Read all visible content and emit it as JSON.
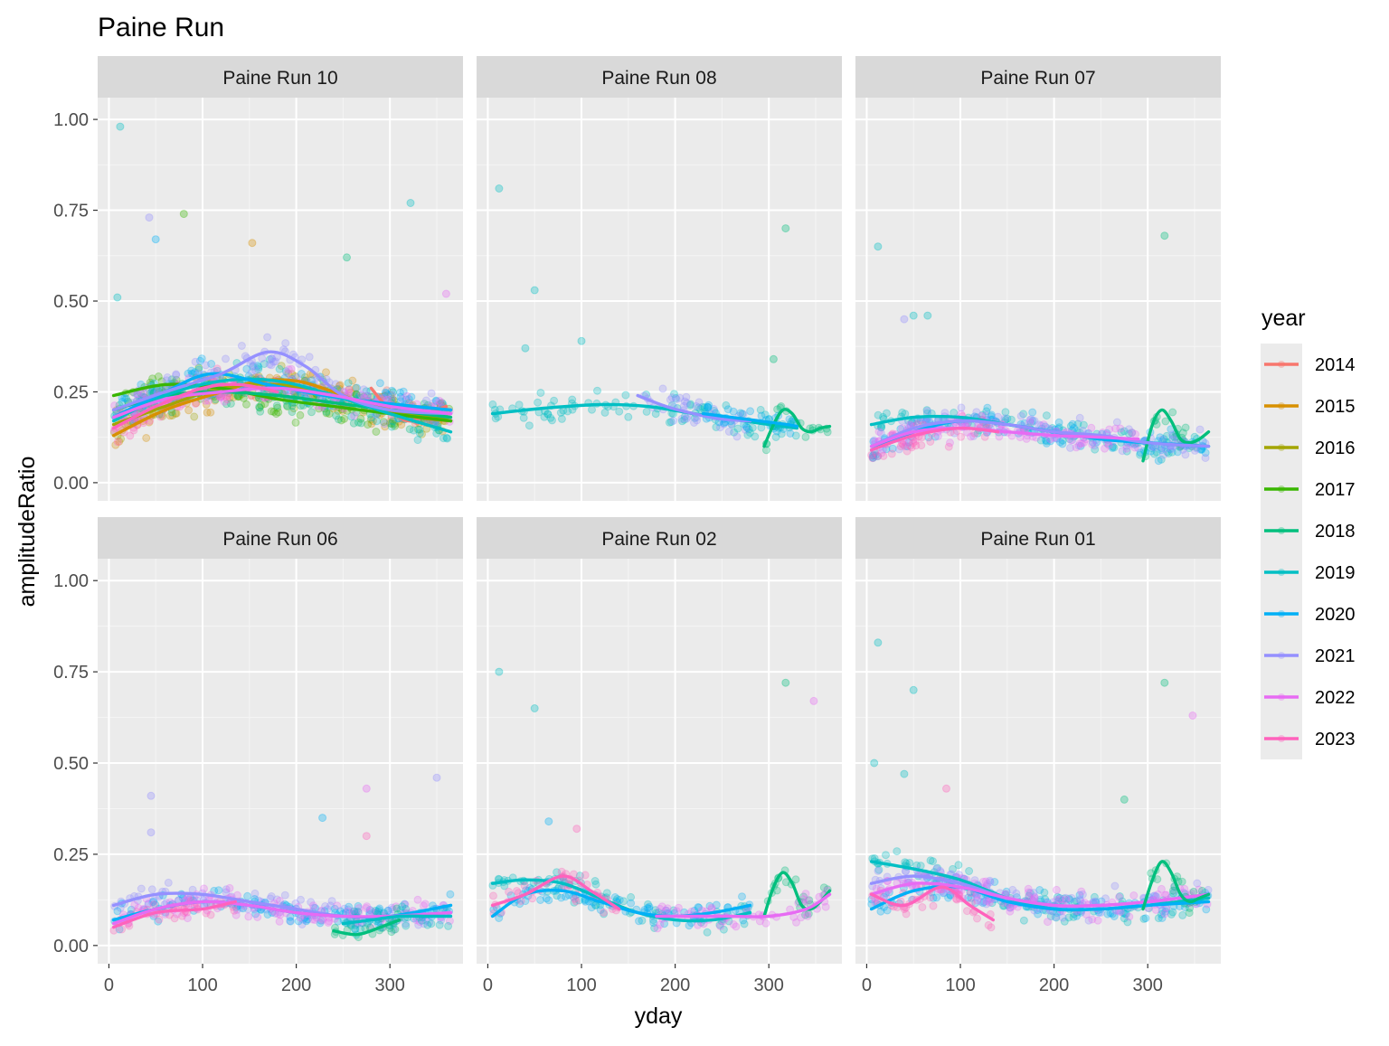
{
  "chart_data": {
    "type": "scatter",
    "title": "Paine Run",
    "xlabel": "yday",
    "ylabel": "amplitudeRatio",
    "xlim": [
      -12,
      378
    ],
    "ylim": [
      -0.05,
      1.06
    ],
    "x_ticks": [
      0,
      100,
      200,
      300
    ],
    "x_tick_labels": [
      "0",
      "100",
      "200",
      "300"
    ],
    "y_ticks": [
      0,
      0.25,
      0.5,
      0.75,
      1.0
    ],
    "y_tick_labels": [
      "0.00",
      "0.25",
      "0.50",
      "0.75",
      "1.00"
    ],
    "grid": true,
    "legend": {
      "title": "year",
      "position": "right",
      "entries": [
        "2014",
        "2015",
        "2016",
        "2017",
        "2018",
        "2019",
        "2020",
        "2021",
        "2022",
        "2023"
      ],
      "colors": [
        "#F8766D",
        "#D89000",
        "#A3A500",
        "#39B600",
        "#00BF7D",
        "#00BFC4",
        "#00B0F6",
        "#9590FF",
        "#E76BF3",
        "#FF62BC"
      ]
    },
    "panels": [
      {
        "label": "Paine Run 10",
        "smooth": [
          {
            "year": "2014",
            "x": [
              280,
              300,
              320,
              340,
              360
            ],
            "y": [
              0.26,
              0.2,
              0.17,
              0.19,
              0.21
            ]
          },
          {
            "year": "2015",
            "x": [
              5,
              60,
              120,
              160,
              200,
              240,
              280,
              330,
              365
            ],
            "y": [
              0.13,
              0.2,
              0.25,
              0.28,
              0.28,
              0.25,
              0.21,
              0.18,
              0.17
            ]
          },
          {
            "year": "2016",
            "x": [
              5,
              60,
              120,
              180,
              240,
              300,
              365
            ],
            "y": [
              0.16,
              0.21,
              0.26,
              0.27,
              0.24,
              0.2,
              0.17
            ]
          },
          {
            "year": "2017",
            "x": [
              5,
              60,
              120,
              180,
              240,
              300,
              365
            ],
            "y": [
              0.24,
              0.27,
              0.26,
              0.23,
              0.21,
              0.19,
              0.17
            ]
          },
          {
            "year": "2018",
            "x": [
              5,
              60,
              120,
              180,
              240,
              300,
              365
            ],
            "y": [
              0.2,
              0.24,
              0.25,
              0.24,
              0.22,
              0.2,
              0.18
            ]
          },
          {
            "year": "2019",
            "x": [
              5,
              60,
              120,
              180,
              240,
              300,
              365
            ],
            "y": [
              0.17,
              0.24,
              0.28,
              0.28,
              0.24,
              0.19,
              0.14
            ]
          },
          {
            "year": "2020",
            "x": [
              5,
              60,
              110,
              170,
              230,
              290,
              365
            ],
            "y": [
              0.18,
              0.25,
              0.3,
              0.27,
              0.24,
              0.22,
              0.2
            ]
          },
          {
            "year": "2021",
            "x": [
              5,
              60,
              120,
              170,
              210,
              250,
              300,
              365
            ],
            "y": [
              0.2,
              0.25,
              0.3,
              0.36,
              0.32,
              0.24,
              0.2,
              0.19
            ]
          },
          {
            "year": "2022",
            "x": [
              5,
              60,
              120,
              180,
              240,
              300,
              365
            ],
            "y": [
              0.18,
              0.23,
              0.25,
              0.26,
              0.24,
              0.21,
              0.19
            ]
          },
          {
            "year": "2023",
            "x": [
              5,
              50,
              100,
              140,
              180
            ],
            "y": [
              0.15,
              0.21,
              0.26,
              0.27,
              0.25
            ]
          }
        ],
        "highlight_points": [
          {
            "x": 12,
            "y": 0.98,
            "year": "2019"
          },
          {
            "x": 43,
            "y": 0.73,
            "year": "2021"
          },
          {
            "x": 80,
            "y": 0.74,
            "year": "2017"
          },
          {
            "x": 322,
            "y": 0.77,
            "year": "2019"
          },
          {
            "x": 50,
            "y": 0.67,
            "year": "2020"
          },
          {
            "x": 153,
            "y": 0.66,
            "year": "2015"
          },
          {
            "x": 254,
            "y": 0.62,
            "year": "2018"
          },
          {
            "x": 360,
            "y": 0.52,
            "year": "2022"
          },
          {
            "x": 9,
            "y": 0.51,
            "year": "2019"
          }
        ]
      },
      {
        "label": "Paine Run 08",
        "smooth": [
          {
            "year": "2019",
            "x": [
              5,
              60,
              120,
              170,
              220,
              260,
              300,
              330
            ],
            "y": [
              0.19,
              0.205,
              0.215,
              0.21,
              0.19,
              0.175,
              0.16,
              0.15
            ]
          },
          {
            "year": "2018",
            "x": [
              295,
              305,
              315,
              325,
              335,
              345,
              355,
              365
            ],
            "y": [
              0.1,
              0.16,
              0.2,
              0.19,
              0.15,
              0.14,
              0.15,
              0.155
            ]
          },
          {
            "year": "2021",
            "x": [
              160,
              190,
              220,
              250,
              280
            ],
            "y": [
              0.24,
              0.21,
              0.19,
              0.175,
              0.17
            ]
          },
          {
            "year": "2020",
            "x": [
              230,
              260,
              290,
              320,
              330
            ],
            "y": [
              0.19,
              0.18,
              0.17,
              0.16,
              0.155
            ]
          }
        ],
        "highlight_points": [
          {
            "x": 12,
            "y": 0.81,
            "year": "2019"
          },
          {
            "x": 50,
            "y": 0.53,
            "year": "2019"
          },
          {
            "x": 318,
            "y": 0.7,
            "year": "2018"
          },
          {
            "x": 40,
            "y": 0.37,
            "year": "2019"
          },
          {
            "x": 100,
            "y": 0.39,
            "year": "2019"
          },
          {
            "x": 305,
            "y": 0.34,
            "year": "2018"
          }
        ]
      },
      {
        "label": "Paine Run 07",
        "smooth": [
          {
            "year": "2019",
            "x": [
              5,
              50,
              100,
              150,
              200,
              250,
              300,
              365
            ],
            "y": [
              0.16,
              0.18,
              0.18,
              0.16,
              0.14,
              0.12,
              0.11,
              0.1
            ]
          },
          {
            "year": "2018",
            "x": [
              295,
              305,
              315,
              325,
              335,
              345,
              355,
              365
            ],
            "y": [
              0.06,
              0.16,
              0.2,
              0.17,
              0.12,
              0.11,
              0.12,
              0.14
            ]
          },
          {
            "year": "2020",
            "x": [
              5,
              50,
              100,
              150,
              200,
              250,
              300,
              365
            ],
            "y": [
              0.09,
              0.14,
              0.17,
              0.16,
              0.14,
              0.12,
              0.11,
              0.1
            ]
          },
          {
            "year": "2021",
            "x": [
              5,
              50,
              100,
              150,
              200,
              250,
              300,
              365
            ],
            "y": [
              0.1,
              0.15,
              0.17,
              0.16,
              0.14,
              0.13,
              0.11,
              0.1
            ]
          },
          {
            "year": "2022",
            "x": [
              5,
              50,
              100,
              150,
              200,
              250,
              290
            ],
            "y": [
              0.1,
              0.14,
              0.15,
              0.14,
              0.13,
              0.125,
              0.12
            ]
          },
          {
            "year": "2023",
            "x": [
              5,
              50,
              100,
              140
            ],
            "y": [
              0.09,
              0.13,
              0.15,
              0.14
            ]
          }
        ],
        "highlight_points": [
          {
            "x": 12,
            "y": 0.65,
            "year": "2019"
          },
          {
            "x": 318,
            "y": 0.68,
            "year": "2018"
          },
          {
            "x": 50,
            "y": 0.46,
            "year": "2019"
          },
          {
            "x": 65,
            "y": 0.46,
            "year": "2019"
          },
          {
            "x": 40,
            "y": 0.45,
            "year": "2021"
          }
        ]
      },
      {
        "label": "Paine Run 06",
        "smooth": [
          {
            "year": "2021",
            "x": [
              5,
              50,
              100,
              150,
              200,
              250,
              300,
              365
            ],
            "y": [
              0.11,
              0.14,
              0.14,
              0.12,
              0.1,
              0.08,
              0.08,
              0.09
            ]
          },
          {
            "year": "2020",
            "x": [
              5,
              50,
              100,
              150,
              200,
              250,
              300,
              365
            ],
            "y": [
              0.07,
              0.1,
              0.12,
              0.11,
              0.09,
              0.08,
              0.08,
              0.11
            ]
          },
          {
            "year": "2022",
            "x": [
              5,
              50,
              100,
              150,
              200,
              250,
              300,
              365
            ],
            "y": [
              0.06,
              0.1,
              0.12,
              0.11,
              0.09,
              0.08,
              0.08,
              0.09
            ]
          },
          {
            "year": "2023",
            "x": [
              5,
              50,
              100,
              135
            ],
            "y": [
              0.05,
              0.09,
              0.1,
              0.12
            ]
          },
          {
            "year": "2018",
            "x": [
              240,
              265,
              290,
              310
            ],
            "y": [
              0.04,
              0.03,
              0.05,
              0.07
            ]
          },
          {
            "year": "2019",
            "x": [
              250,
              280,
              310,
              340,
              365
            ],
            "y": [
              0.06,
              0.07,
              0.08,
              0.08,
              0.08
            ]
          }
        ],
        "highlight_points": [
          {
            "x": 45,
            "y": 0.41,
            "year": "2021"
          },
          {
            "x": 275,
            "y": 0.43,
            "year": "2022"
          },
          {
            "x": 350,
            "y": 0.46,
            "year": "2021"
          },
          {
            "x": 228,
            "y": 0.35,
            "year": "2020"
          },
          {
            "x": 275,
            "y": 0.3,
            "year": "2023"
          },
          {
            "x": 45,
            "y": 0.31,
            "year": "2021"
          }
        ]
      },
      {
        "label": "Paine Run 02",
        "smooth": [
          {
            "year": "2019",
            "x": [
              5,
              40,
              80,
              120,
              160,
              200,
              240,
              280
            ],
            "y": [
              0.17,
              0.18,
              0.17,
              0.13,
              0.09,
              0.07,
              0.07,
              0.09
            ]
          },
          {
            "year": "2020",
            "x": [
              5,
              40,
              80,
              120,
              160,
              200,
              240,
              280
            ],
            "y": [
              0.08,
              0.14,
              0.15,
              0.12,
              0.09,
              0.08,
              0.09,
              0.11
            ]
          },
          {
            "year": "2023",
            "x": [
              5,
              40,
              80,
              110,
              140
            ],
            "y": [
              0.11,
              0.14,
              0.19,
              0.15,
              0.1
            ]
          },
          {
            "year": "2018",
            "x": [
              295,
              305,
              315,
              325,
              335,
              345,
              355,
              365
            ],
            "y": [
              0.08,
              0.16,
              0.2,
              0.17,
              0.11,
              0.1,
              0.12,
              0.15
            ]
          },
          {
            "year": "2022",
            "x": [
              180,
              220,
              260,
              300,
              340,
              365
            ],
            "y": [
              0.08,
              0.08,
              0.08,
              0.08,
              0.1,
              0.14
            ]
          }
        ],
        "highlight_points": [
          {
            "x": 12,
            "y": 0.75,
            "year": "2019"
          },
          {
            "x": 50,
            "y": 0.65,
            "year": "2019"
          },
          {
            "x": 318,
            "y": 0.72,
            "year": "2018"
          },
          {
            "x": 348,
            "y": 0.67,
            "year": "2022"
          },
          {
            "x": 65,
            "y": 0.34,
            "year": "2020"
          },
          {
            "x": 95,
            "y": 0.32,
            "year": "2023"
          }
        ]
      },
      {
        "label": "Paine Run 01",
        "smooth": [
          {
            "year": "2019",
            "x": [
              5,
              50,
              100,
              150,
              200,
              250,
              300,
              365
            ],
            "y": [
              0.23,
              0.21,
              0.18,
              0.13,
              0.1,
              0.1,
              0.11,
              0.13
            ]
          },
          {
            "year": "2020",
            "x": [
              5,
              50,
              100,
              150,
              200,
              250,
              300,
              365
            ],
            "y": [
              0.1,
              0.15,
              0.16,
              0.12,
              0.1,
              0.1,
              0.11,
              0.12
            ]
          },
          {
            "year": "2021",
            "x": [
              5,
              50,
              100,
              150,
              200,
              250,
              300,
              365
            ],
            "y": [
              0.17,
              0.19,
              0.17,
              0.13,
              0.11,
              0.11,
              0.12,
              0.14
            ]
          },
          {
            "year": "2022",
            "x": [
              5,
              50,
              100,
              150,
              200,
              250,
              300,
              365
            ],
            "y": [
              0.14,
              0.17,
              0.16,
              0.13,
              0.11,
              0.11,
              0.12,
              0.14
            ]
          },
          {
            "year": "2023",
            "x": [
              5,
              40,
              80,
              110,
              135
            ],
            "y": [
              0.14,
              0.11,
              0.16,
              0.11,
              0.07
            ]
          },
          {
            "year": "2018",
            "x": [
              295,
              305,
              315,
              325,
              335,
              345,
              355,
              365
            ],
            "y": [
              0.1,
              0.18,
              0.23,
              0.2,
              0.14,
              0.12,
              0.13,
              0.14
            ]
          }
        ],
        "highlight_points": [
          {
            "x": 12,
            "y": 0.83,
            "year": "2019"
          },
          {
            "x": 50,
            "y": 0.7,
            "year": "2019"
          },
          {
            "x": 318,
            "y": 0.72,
            "year": "2018"
          },
          {
            "x": 348,
            "y": 0.63,
            "year": "2022"
          },
          {
            "x": 8,
            "y": 0.5,
            "year": "2019"
          },
          {
            "x": 40,
            "y": 0.47,
            "year": "2019"
          },
          {
            "x": 85,
            "y": 0.43,
            "year": "2023"
          },
          {
            "x": 275,
            "y": 0.4,
            "year": "2018"
          }
        ]
      }
    ]
  }
}
